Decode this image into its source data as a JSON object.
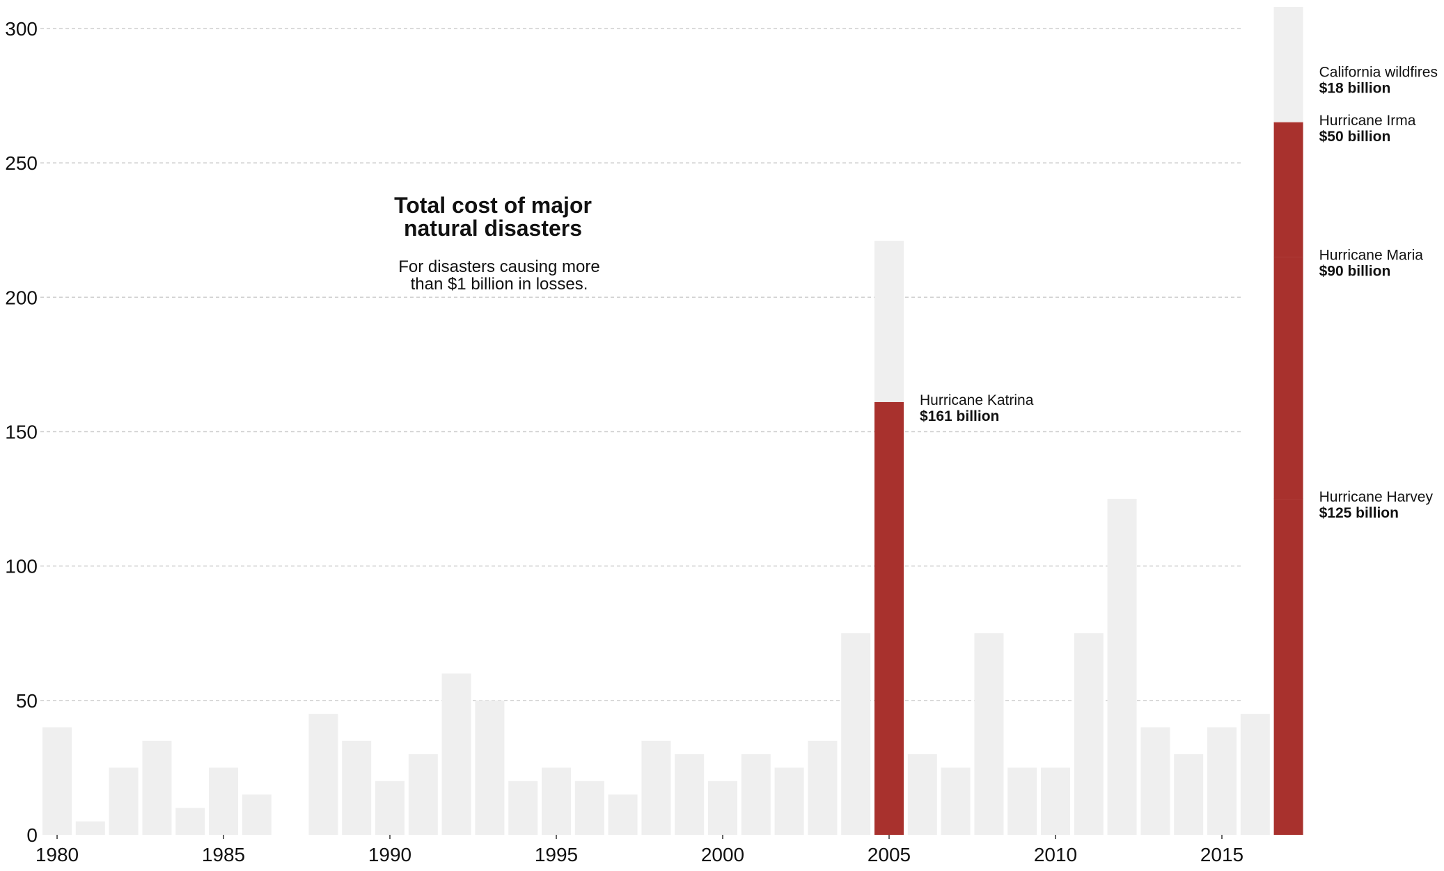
{
  "chart_data": {
    "type": "bar",
    "title_lines": [
      "Total cost of major",
      "natural disasters"
    ],
    "subtitle_lines": [
      "For disasters causing more",
      "than $1 billion in losses."
    ],
    "xlabel": "",
    "ylabel": "",
    "ylim": [
      0,
      308
    ],
    "y_ticks": [
      0,
      50,
      100,
      150,
      200,
      250,
      300
    ],
    "x_ticks": [
      1980,
      1985,
      1990,
      1995,
      2000,
      2005,
      2010,
      2015
    ],
    "grid": true,
    "colors": {
      "base": "#efefef",
      "highlight": "#a8312d"
    },
    "years": [
      1980,
      1981,
      1982,
      1983,
      1984,
      1985,
      1986,
      1987,
      1988,
      1989,
      1990,
      1991,
      1992,
      1993,
      1994,
      1995,
      1996,
      1997,
      1998,
      1999,
      2000,
      2001,
      2002,
      2003,
      2004,
      2005,
      2006,
      2007,
      2008,
      2009,
      2010,
      2011,
      2012,
      2013,
      2014,
      2015,
      2016,
      2017
    ],
    "totals": [
      40,
      5,
      25,
      35,
      10,
      25,
      15,
      0,
      45,
      35,
      20,
      30,
      60,
      50,
      20,
      25,
      20,
      15,
      35,
      30,
      20,
      30,
      25,
      35,
      75,
      221,
      30,
      25,
      75,
      25,
      25,
      75,
      125,
      40,
      30,
      40,
      45,
      308
    ],
    "highlighted_segments": [
      {
        "year": 2005,
        "name": "Hurricane Katrina",
        "value": 161,
        "label": "$161 billion"
      },
      {
        "year": 2017,
        "name": "Hurricane Harvey",
        "value": 125,
        "label": "$125 billion"
      },
      {
        "year": 2017,
        "name": "Hurricane Maria",
        "value": 90,
        "label": "$90 billion"
      },
      {
        "year": 2017,
        "name": "Hurricane Irma",
        "value": 50,
        "label": "$50 billion"
      },
      {
        "year": 2017,
        "name": "California wildfires",
        "value": 18,
        "label": "$18 billion",
        "highlight": false
      }
    ]
  }
}
